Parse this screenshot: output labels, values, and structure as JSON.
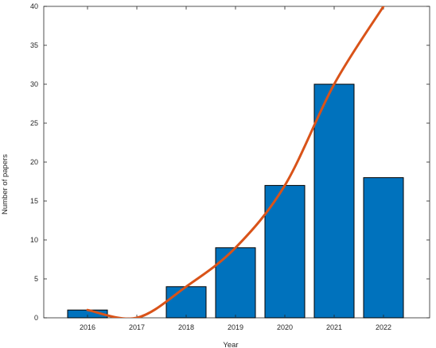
{
  "chart_data": {
    "type": "bar",
    "title": "",
    "xlabel": "Year",
    "ylabel": "Number of papers",
    "categories": [
      "2016",
      "2017",
      "2018",
      "2019",
      "2020",
      "2021",
      "2022"
    ],
    "series": [
      {
        "kind": "bar",
        "values": [
          1,
          0,
          4,
          9,
          17,
          30,
          18
        ]
      }
    ],
    "trend_line": {
      "x": [
        "2016",
        "2017",
        "2018",
        "2019",
        "2020",
        "2021",
        "2022"
      ],
      "values": [
        1,
        0,
        4,
        9,
        17,
        30,
        40
      ]
    },
    "ylim": [
      0,
      40
    ],
    "yticks": [
      0,
      5,
      10,
      15,
      20,
      25,
      30,
      35,
      40
    ],
    "grid": false,
    "legend": "none",
    "colors": {
      "bar_fill": "#0072BD",
      "bar_edge": "#000000",
      "line": "#D95319",
      "axis": "#262626"
    }
  }
}
